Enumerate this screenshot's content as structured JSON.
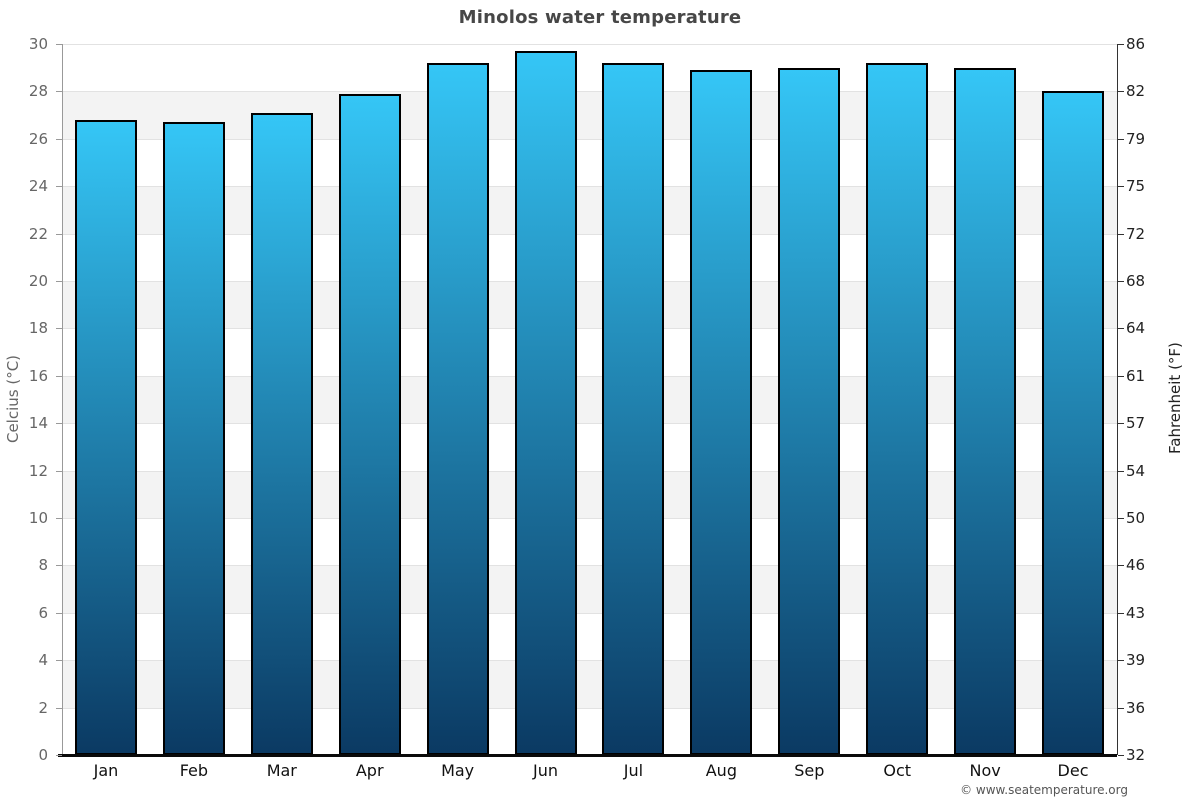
{
  "title": "Minolos water temperature",
  "footer": "© www.seatemperature.org",
  "axes": {
    "left_label": "Celcius (°C)",
    "right_label": "Fahrenheit (°F)"
  },
  "chart_data": {
    "type": "bar",
    "title": "Minolos water temperature",
    "categories": [
      "Jan",
      "Feb",
      "Mar",
      "Apr",
      "May",
      "Jun",
      "Jul",
      "Aug",
      "Sep",
      "Oct",
      "Nov",
      "Dec"
    ],
    "series": [
      {
        "name": "Water temperature (°C)",
        "values": [
          26.8,
          26.7,
          27.1,
          27.9,
          29.2,
          29.7,
          29.2,
          28.9,
          29.0,
          29.2,
          29.0,
          28.0
        ]
      }
    ],
    "ylabel_left": "Celcius (°C)",
    "ylabel_right": "Fahrenheit (°F)",
    "ylim": [
      0,
      30
    ],
    "celsius_ticks": [
      0,
      2,
      4,
      6,
      8,
      10,
      12,
      14,
      16,
      18,
      20,
      22,
      24,
      26,
      28,
      30
    ],
    "fahrenheit_ticks": [
      32,
      36,
      39,
      43,
      46,
      50,
      54,
      57,
      61,
      64,
      68,
      72,
      75,
      79,
      82,
      86
    ],
    "grid": "alternating horizontal bands every 2°C",
    "legend_position": "none"
  },
  "colors": {
    "bar_top": "#35C6F6",
    "bar_bottom": "#0B3A63",
    "bar_border": "#000000",
    "band_gray": "#F3F3F3",
    "gridline": "#E2E2E2",
    "axis_left": "#999999",
    "axis_right": "#333333",
    "axis_bottom": "#0A0A0A"
  }
}
